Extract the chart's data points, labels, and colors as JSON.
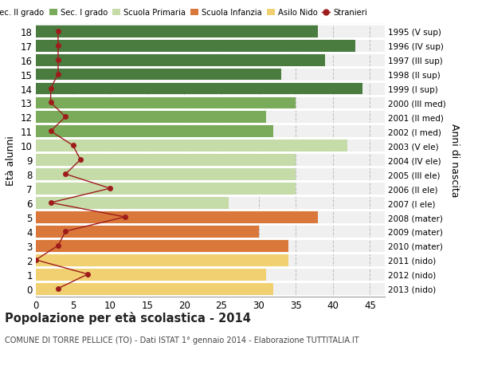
{
  "ages": [
    18,
    17,
    16,
    15,
    14,
    13,
    12,
    11,
    10,
    9,
    8,
    7,
    6,
    5,
    4,
    3,
    2,
    1,
    0
  ],
  "right_labels": [
    "1995 (V sup)",
    "1996 (IV sup)",
    "1997 (III sup)",
    "1998 (II sup)",
    "1999 (I sup)",
    "2000 (III med)",
    "2001 (II med)",
    "2002 (I med)",
    "2003 (V ele)",
    "2004 (IV ele)",
    "2005 (III ele)",
    "2006 (II ele)",
    "2007 (I ele)",
    "2008 (mater)",
    "2009 (mater)",
    "2010 (mater)",
    "2011 (nido)",
    "2012 (nido)",
    "2013 (nido)"
  ],
  "bar_values": [
    38,
    43,
    39,
    33,
    44,
    35,
    31,
    32,
    42,
    35,
    35,
    35,
    26,
    38,
    30,
    34,
    34,
    31,
    32
  ],
  "bar_colors": [
    "#4a7c3f",
    "#4a7c3f",
    "#4a7c3f",
    "#4a7c3f",
    "#4a7c3f",
    "#7aab5a",
    "#7aab5a",
    "#7aab5a",
    "#c5dba8",
    "#c5dba8",
    "#c5dba8",
    "#c5dba8",
    "#c5dba8",
    "#d9783a",
    "#d9783a",
    "#d9783a",
    "#f0d070",
    "#f0d070",
    "#f0d070"
  ],
  "stranieri_values": [
    3,
    3,
    3,
    3,
    2,
    2,
    4,
    2,
    5,
    6,
    4,
    10,
    2,
    12,
    4,
    3,
    0,
    7,
    3
  ],
  "stranieri_color": "#9e1c1c",
  "legend_labels": [
    "Sec. II grado",
    "Sec. I grado",
    "Scuola Primaria",
    "Scuola Infanzia",
    "Asilo Nido",
    "Stranieri"
  ],
  "legend_colors": [
    "#4a7c3f",
    "#7aab5a",
    "#c5dba8",
    "#d9783a",
    "#f0d070",
    "#9e1c1c"
  ],
  "ylabel": "Età alunni",
  "right_ylabel": "Anni di nascita",
  "title": "Popolazione per età scolastica - 2014",
  "subtitle": "COMUNE DI TORRE PELLICE (TO) - Dati ISTAT 1° gennaio 2014 - Elaborazione TUTTITALIA.IT",
  "xlim": [
    0,
    47
  ],
  "xticks": [
    0,
    5,
    10,
    15,
    20,
    25,
    30,
    35,
    40,
    45
  ],
  "fig_bg_color": "#ffffff",
  "plot_bg_color": "#f0f0f0"
}
